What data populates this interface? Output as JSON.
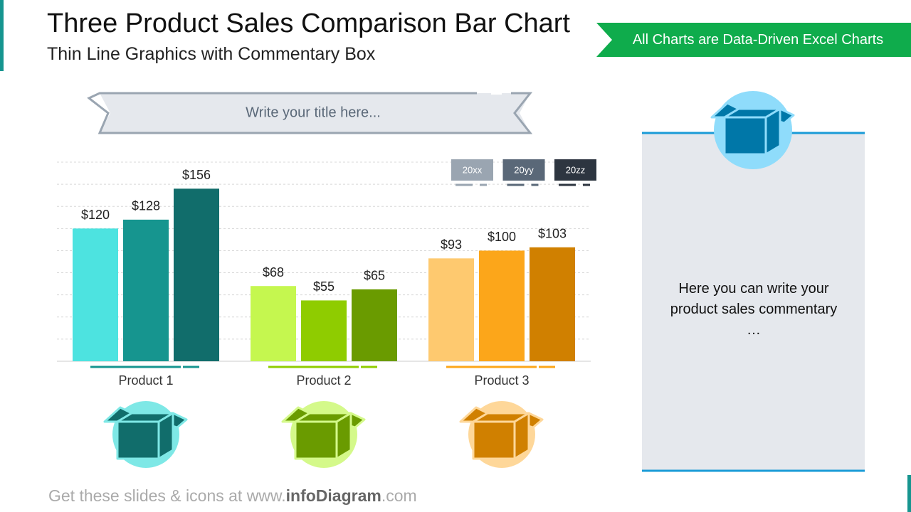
{
  "header": {
    "title": "Three Product Sales Comparison Bar Chart",
    "subtitle": "Thin Line Graphics with Commentary Box",
    "badge": "All Charts are Data-Driven Excel Charts"
  },
  "chart_data": {
    "type": "bar",
    "title": "Write your title here...",
    "categories": [
      "Product 1",
      "Product 2",
      "Product 3"
    ],
    "series": [
      {
        "name": "20xx",
        "color": "#9aa5b1",
        "colors": [
          "#4de3e0",
          "#c5f74f",
          "#fec96f"
        ],
        "values": [
          120,
          68,
          93
        ],
        "value_labels": [
          "$120",
          "$68",
          "$93"
        ]
      },
      {
        "name": "20yy",
        "color": "#5a6878",
        "colors": [
          "#16958f",
          "#8fcc00",
          "#fca61a"
        ],
        "values": [
          128,
          55,
          100
        ],
        "value_labels": [
          "$128",
          "$55",
          "$100"
        ]
      },
      {
        "name": "20zz",
        "color": "#2d3540",
        "colors": [
          "#116d6b",
          "#6a9b00",
          "#d08000"
        ],
        "values": [
          156,
          65,
          103
        ],
        "value_labels": [
          "$156",
          "$65",
          "$103"
        ]
      }
    ],
    "ylim": [
      0,
      180
    ],
    "yticks": [
      0,
      20,
      40,
      60,
      80,
      100,
      120,
      140,
      160,
      180
    ],
    "grid": true
  },
  "commentary": "Here you can write your product sales commentary …",
  "footer": {
    "text": "Get these slides & icons at www.",
    "brand": "infoDiagram",
    "suffix": ".com"
  }
}
